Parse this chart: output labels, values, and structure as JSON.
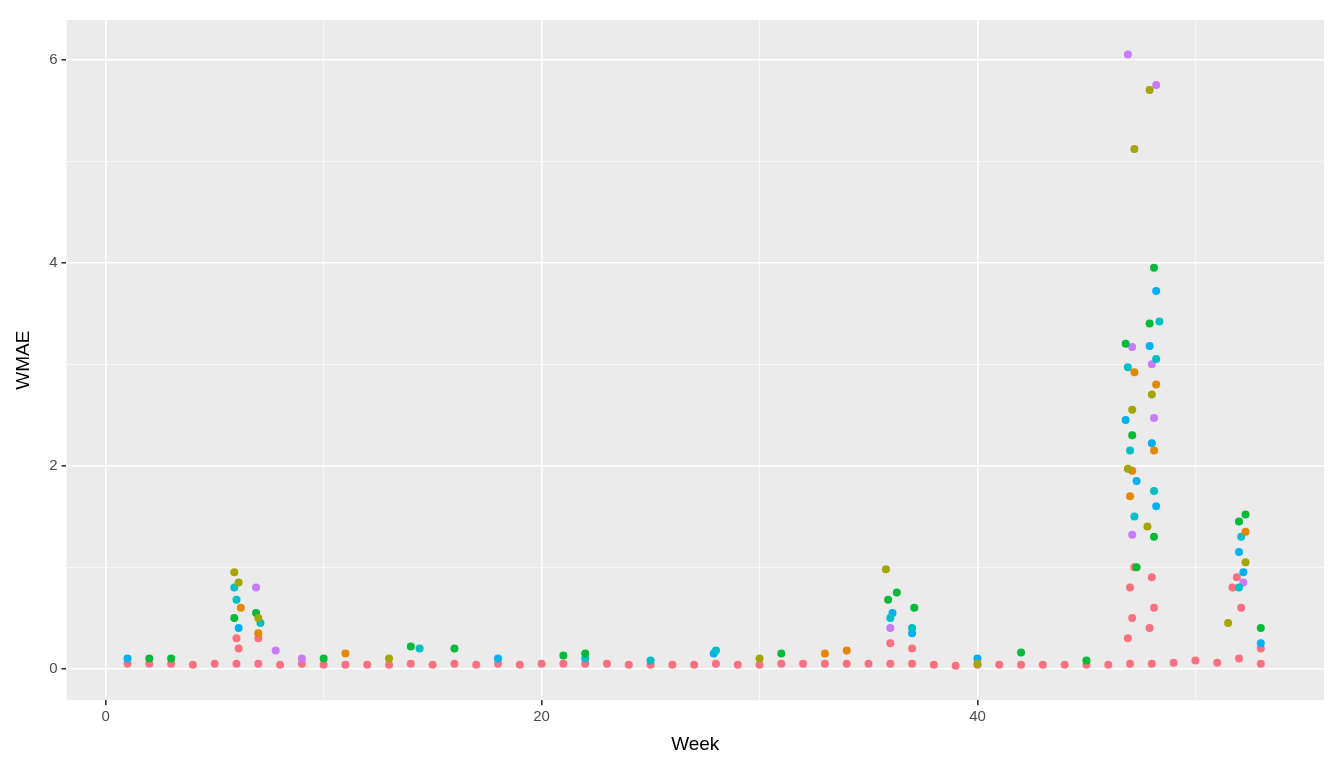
{
  "chart_data": {
    "type": "scatter",
    "xlabel": "Week",
    "ylabel": "WMAE",
    "xlim": [
      -1.8,
      55.9
    ],
    "ylim": [
      -0.31,
      6.39
    ],
    "xticks": [
      0,
      {
        "value": 10,
        "label": null
      },
      20,
      {
        "value": 30,
        "label": null
      },
      40,
      {
        "value": 50,
        "label": null
      }
    ],
    "yticks": [
      0,
      {
        "value": 1,
        "label": null
      },
      2,
      {
        "value": 3,
        "label": null
      },
      4,
      {
        "value": 5,
        "label": null
      },
      6
    ],
    "grid": true,
    "legend": false,
    "marker": "circle",
    "series": [
      {
        "color": "#a3a500",
        "x": [
          5.9,
          6.1,
          7,
          35.8,
          47.2,
          47.9,
          46.9,
          47.1,
          48,
          47.8,
          52.3,
          51.5,
          30,
          13,
          40
        ],
        "values": [
          0.95,
          0.85,
          0.5,
          0.98,
          5.12,
          5.7,
          1.97,
          2.55,
          2.7,
          1.4,
          1.05,
          0.45,
          0.1,
          0.1,
          0.05
        ]
      },
      {
        "color": "#e58700",
        "x": [
          6.2,
          7,
          11,
          47.1,
          47.2,
          48.2,
          48.1,
          47,
          52.3,
          33,
          34
        ],
        "values": [
          0.6,
          0.35,
          0.15,
          1.95,
          2.92,
          2.8,
          2.15,
          1.7,
          1.35,
          0.15,
          0.18
        ]
      },
      {
        "color": "#00ba38",
        "x": [
          5.9,
          6.9,
          14,
          16,
          21,
          22,
          35.9,
          36.3,
          37.1,
          46.8,
          47.1,
          47.3,
          47.9,
          48.1,
          48.1,
          52,
          52.3,
          53,
          31,
          42,
          10,
          2,
          3,
          45
        ],
        "values": [
          0.5,
          0.55,
          0.22,
          0.2,
          0.13,
          0.15,
          0.68,
          0.75,
          0.6,
          3.2,
          2.3,
          1.0,
          3.4,
          3.95,
          1.3,
          1.45,
          1.52,
          0.4,
          0.15,
          0.16,
          0.1,
          0.1,
          0.1,
          0.08
        ]
      },
      {
        "color": "#00bfc4",
        "x": [
          5.9,
          6,
          7.1,
          36,
          37,
          46.9,
          47,
          47.2,
          48.35,
          48.2,
          48.1,
          52.1,
          52,
          28,
          14.4,
          22,
          25
        ],
        "values": [
          0.8,
          0.68,
          0.45,
          0.5,
          0.4,
          2.97,
          2.15,
          1.5,
          3.42,
          3.05,
          1.75,
          1.3,
          0.8,
          0.18,
          0.2,
          0.1,
          0.08
        ]
      },
      {
        "color": "#00b0f6",
        "x": [
          6.1,
          36.1,
          37,
          46.8,
          47.3,
          47.9,
          48.2,
          48,
          48.2,
          52,
          52.2,
          53,
          1,
          18,
          40,
          27.9
        ],
        "values": [
          0.4,
          0.55,
          0.35,
          2.45,
          1.85,
          3.18,
          3.72,
          2.22,
          1.6,
          1.15,
          0.95,
          0.25,
          0.1,
          0.1,
          0.1,
          0.15
        ]
      },
      {
        "color": "#c77cff",
        "x": [
          6.9,
          7.8,
          36,
          46.9,
          48.2,
          47.1,
          48,
          48.1,
          47.1,
          52.2,
          9
        ],
        "values": [
          0.8,
          0.18,
          0.4,
          6.05,
          5.75,
          3.17,
          3.0,
          2.47,
          1.32,
          0.85,
          0.1
        ]
      },
      {
        "color": "#fc717f",
        "x": [
          1,
          2,
          3,
          4,
          5,
          6,
          7,
          8,
          9,
          10,
          11,
          12,
          13,
          14,
          15,
          16,
          17,
          18,
          19,
          20,
          21,
          22,
          23,
          24,
          25,
          26,
          27,
          28,
          29,
          30,
          31,
          32,
          33,
          34,
          35,
          36,
          37,
          38,
          39,
          40,
          41,
          42,
          43,
          44,
          45,
          46,
          47,
          48,
          49,
          50,
          51,
          52,
          53,
          6,
          6.1,
          7,
          36,
          37,
          47,
          47.1,
          46.9,
          47.2,
          48,
          48.1,
          47.9,
          51.7,
          52.1,
          51.9,
          53
        ],
        "values": [
          0.05,
          0.05,
          0.05,
          0.04,
          0.05,
          0.05,
          0.05,
          0.04,
          0.05,
          0.04,
          0.04,
          0.04,
          0.04,
          0.05,
          0.04,
          0.05,
          0.04,
          0.05,
          0.04,
          0.05,
          0.05,
          0.05,
          0.05,
          0.04,
          0.04,
          0.04,
          0.04,
          0.05,
          0.04,
          0.04,
          0.05,
          0.05,
          0.05,
          0.05,
          0.05,
          0.05,
          0.05,
          0.04,
          0.03,
          0.04,
          0.04,
          0.04,
          0.04,
          0.04,
          0.04,
          0.04,
          0.05,
          0.05,
          0.06,
          0.08,
          0.06,
          0.1,
          0.05,
          0.3,
          0.2,
          0.3,
          0.25,
          0.2,
          0.8,
          0.5,
          0.3,
          1.0,
          0.9,
          0.6,
          0.4,
          0.8,
          0.6,
          0.9,
          0.2
        ]
      }
    ]
  }
}
